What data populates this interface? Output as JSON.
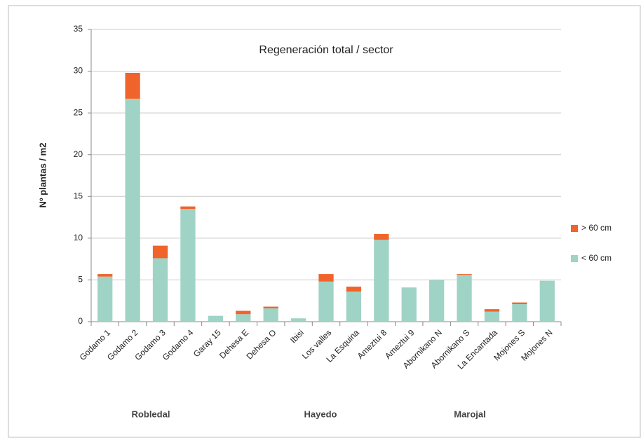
{
  "chart_data": {
    "type": "stacked_bar",
    "title": "Regeneración total / sector",
    "y_label": "Nº plantas / m2",
    "categories": [
      "Godamo 1",
      "Godamo 2",
      "Godamo 3",
      "Godamo 4",
      "Garay 15",
      "Dehesa E",
      "Dehesa O",
      "Ibisi",
      "Los valles",
      "La Esquina",
      "Ameztui 8",
      "Ameztui 9",
      "Abornikano N",
      "Abornikano S",
      "La Encantada",
      "Mojones S",
      "Mojones N"
    ],
    "group_labels": [
      "Robledal",
      "Hayedo",
      "Marojal"
    ],
    "series": [
      {
        "name": "< 60 cm",
        "color": "#9fd3c5",
        "values": [
          5.4,
          26.7,
          7.6,
          13.5,
          0.7,
          0.9,
          1.6,
          0.4,
          4.8,
          3.6,
          9.8,
          4.1,
          5.0,
          5.6,
          1.2,
          2.1,
          4.9
        ]
      },
      {
        "name": "> 60 cm",
        "color": "#f0642c",
        "values": [
          0.3,
          3.1,
          1.5,
          0.3,
          0,
          0.4,
          0.2,
          0,
          0.9,
          0.6,
          0.7,
          0,
          0,
          0.1,
          0.3,
          0.2,
          0
        ]
      }
    ],
    "ylim": [
      0,
      35
    ],
    "yticks": [
      0,
      5,
      10,
      15,
      20,
      25,
      30,
      35
    ],
    "grid": true,
    "legend": "right"
  }
}
